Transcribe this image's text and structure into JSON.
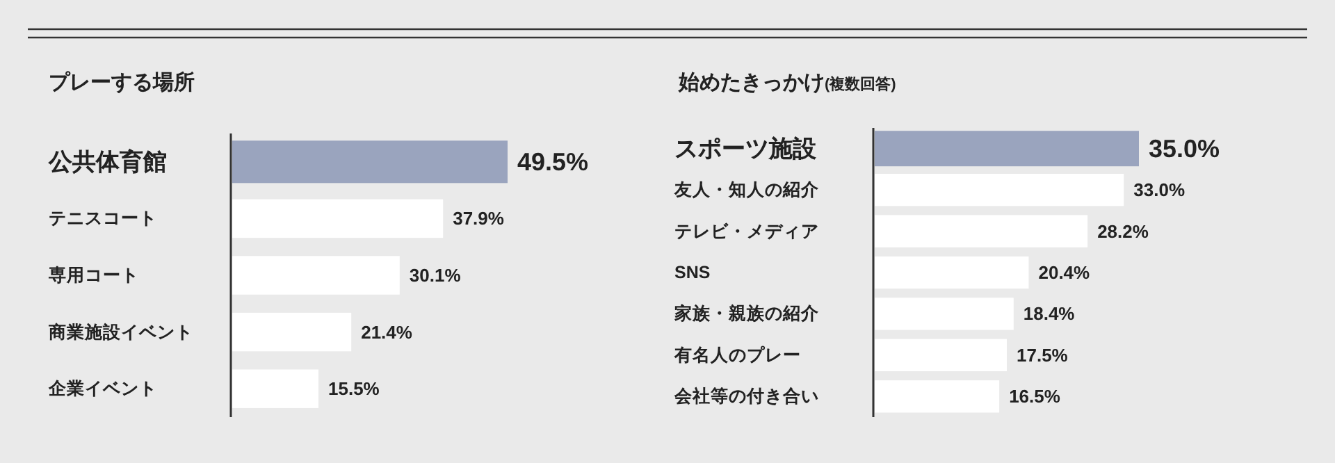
{
  "chart_data": [
    {
      "type": "bar",
      "orientation": "horizontal",
      "title": "プレーする場所",
      "categories": [
        "公共体育館",
        "テニスコート",
        "専用コート",
        "商業施設イベント",
        "企業イベント"
      ],
      "values": [
        49.5,
        37.9,
        30.1,
        21.4,
        15.5
      ],
      "value_labels": [
        "49.5%",
        "37.9%",
        "30.1%",
        "21.4%",
        "15.5%"
      ],
      "colors": [
        "#9aa4be",
        "#ffffff",
        "#ffffff",
        "#ffffff",
        "#ffffff"
      ]
    },
    {
      "type": "bar",
      "orientation": "horizontal",
      "title": "始めたきっかけ",
      "subtitle": "(複数回答)",
      "categories": [
        "スポーツ施設",
        "友人・知人の紹介",
        "テレビ・メディア",
        "SNS",
        "家族・親族の紹介",
        "有名人のプレー",
        "会社等の付き合い"
      ],
      "values": [
        35.0,
        33.0,
        28.2,
        20.4,
        18.4,
        17.5,
        16.5
      ],
      "value_labels": [
        "35.0%",
        "33.0%",
        "28.2%",
        "20.4%",
        "18.4%",
        "17.5%",
        "16.5%"
      ],
      "colors": [
        "#9aa4be",
        "#ffffff",
        "#ffffff",
        "#ffffff",
        "#ffffff",
        "#ffffff",
        "#ffffff"
      ]
    }
  ]
}
